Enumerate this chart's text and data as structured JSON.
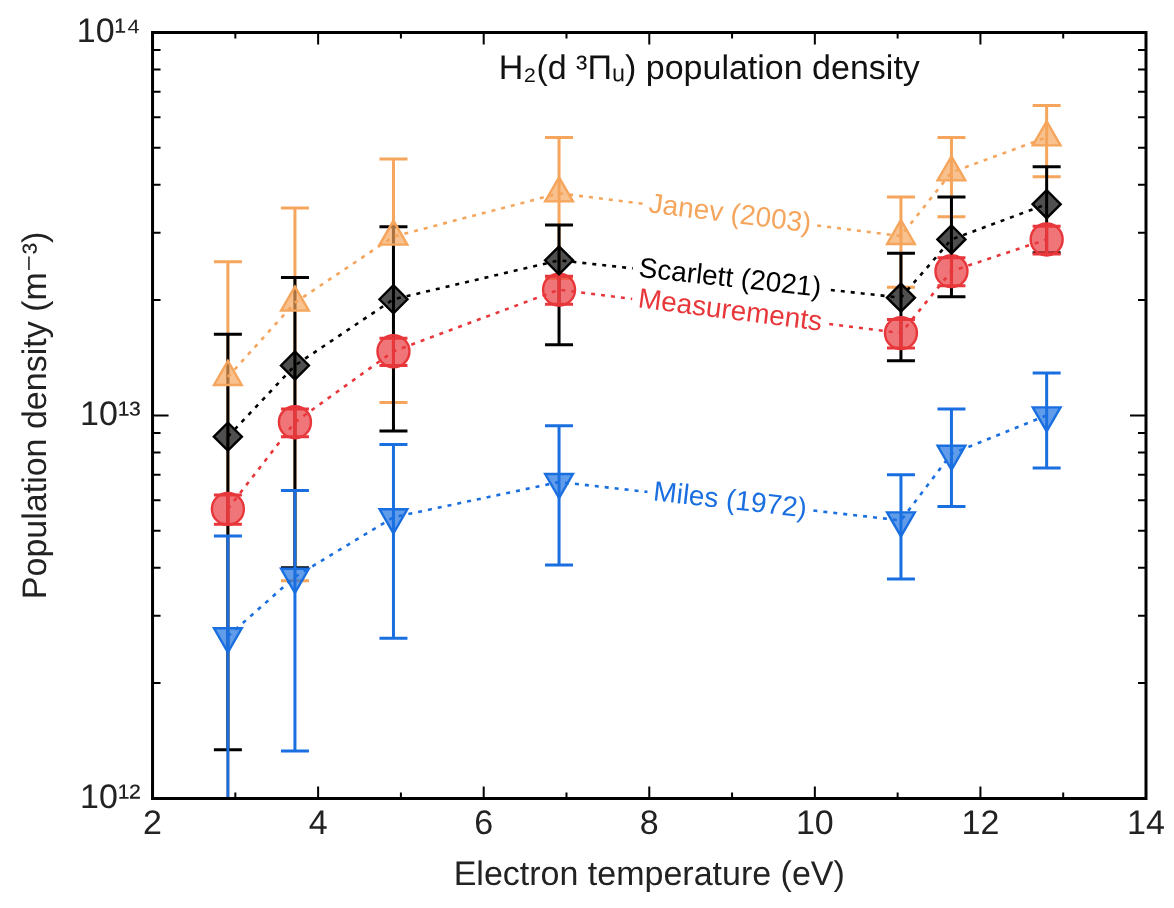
{
  "chart_data": {
    "type": "line",
    "title": "H₂(d ³Πᵤ) population density",
    "xlabel": "Electron temperature (eV)",
    "ylabel": "Population density (m⁻³)",
    "log": "y",
    "xlim": [
      2,
      14
    ],
    "ylim": [
      1000000000000.0,
      100000000000000.0
    ],
    "xticks": [
      2,
      {
        "value": 3,
        "label": null
      },
      4,
      {
        "value": 5,
        "label": null
      },
      6,
      {
        "value": 7,
        "label": null
      },
      8,
      {
        "value": 9,
        "label": null
      },
      10,
      {
        "value": 11,
        "label": null
      },
      12,
      {
        "value": 13,
        "label": null
      },
      14
    ],
    "yticks": [
      {
        "value": 1000000000000.0,
        "label": "10¹²"
      },
      {
        "value": 2000000000000.0,
        "label": null
      },
      {
        "value": 3000000000000.0,
        "label": null
      },
      {
        "value": 4000000000000.0,
        "label": null
      },
      {
        "value": 5000000000000.0,
        "label": null
      },
      {
        "value": 6000000000000.0,
        "label": null
      },
      {
        "value": 7000000000000.0,
        "label": null
      },
      {
        "value": 8000000000000.0,
        "label": null
      },
      {
        "value": 9000000000000.0,
        "label": null
      },
      {
        "value": 10000000000000.0,
        "label": "10¹³"
      },
      {
        "value": 20000000000000.0,
        "label": null
      },
      {
        "value": 30000000000000.0,
        "label": null
      },
      {
        "value": 40000000000000.0,
        "label": null
      },
      {
        "value": 50000000000000.0,
        "label": null
      },
      {
        "value": 60000000000000.0,
        "label": null
      },
      {
        "value": 70000000000000.0,
        "label": null
      },
      {
        "value": 80000000000000.0,
        "label": null
      },
      {
        "value": 90000000000000.0,
        "label": null
      },
      {
        "value": 100000000000000.0,
        "label": "10¹⁴"
      }
    ],
    "legend": false,
    "line_style": "dotted",
    "series": [
      {
        "name": "Janev (2003)",
        "color": "#f5a55c",
        "marker": "triangle",
        "x": [
          2.91,
          3.72,
          4.91,
          6.91,
          11.04,
          11.65,
          12.8
        ],
        "values": [
          12600000000000.0,
          19700000000000.0,
          29300000000000.0,
          38000000000000.0,
          29400000000000.0,
          43100000000000.0,
          53200000000000.0
        ],
        "errors": [
          [
            1000000000000.0,
            25200000000000.0
          ],
          [
            3700000000000.0,
            34800000000000.0
          ],
          [
            10800000000000.0,
            46700000000000.0
          ],
          [
            22800000000000.0,
            53200000000000.0
          ],
          [
            21600000000000.0,
            37200000000000.0
          ],
          [
            33000000000000.0,
            53200000000000.0
          ],
          [
            42000000000000.0,
            64400000000000.0
          ]
        ]
      },
      {
        "name": "Scarlett (2021)",
        "color": "#000000",
        "marker": "diamond",
        "x": [
          2.91,
          3.72,
          4.91,
          6.91,
          11.04,
          11.65,
          12.8
        ],
        "values": [
          8800000000000.0,
          13500000000000.0,
          20100000000000.0,
          25400000000000.0,
          20300000000000.0,
          28800000000000.0,
          35600000000000.0
        ],
        "errors": [
          [
            1340000000000.0,
            16300000000000.0
          ],
          [
            4000000000000.0,
            22900000000000.0
          ],
          [
            9100000000000.0,
            31100000000000.0
          ],
          [
            15300000000000.0,
            31400000000000.0
          ],
          [
            13900000000000.0,
            26500000000000.0
          ],
          [
            20400000000000.0,
            37200000000000.0
          ],
          [
            26600000000000.0,
            44600000000000.0
          ]
        ]
      },
      {
        "name": "Measurements",
        "color": "#e8373b",
        "marker": "circle",
        "x": [
          2.91,
          3.72,
          4.91,
          6.91,
          11.04,
          11.65,
          12.8
        ],
        "values": [
          5700000000000.0,
          9600000000000.0,
          14700000000000.0,
          21300000000000.0,
          16400000000000.0,
          23800000000000.0,
          28800000000000.0
        ],
        "errors": [
          [
            5200000000000.0,
            6200000000000.0
          ],
          [
            8800000000000.0,
            10400000000000.0
          ],
          [
            13500000000000.0,
            15900000000000.0
          ],
          [
            19500000000000.0,
            23100000000000.0
          ],
          [
            15000000000000.0,
            17800000000000.0
          ],
          [
            21800000000000.0,
            25800000000000.0
          ],
          [
            26400000000000.0,
            31200000000000.0
          ]
        ]
      },
      {
        "name": "Miles (1972)",
        "color": "#1a6fe0",
        "marker": "triangle_down",
        "x": [
          2.91,
          3.72,
          4.91,
          6.91,
          11.04,
          11.65,
          12.8
        ],
        "values": [
          2650000000000.0,
          3790000000000.0,
          5420000000000.0,
          6700000000000.0,
          5320000000000.0,
          7940000000000.0,
          10000000000000.0
        ],
        "errors": [
          [
            1000000000000.0,
            4840000000000.0
          ],
          [
            1330000000000.0,
            6370000000000.0
          ],
          [
            2620000000000.0,
            8400000000000.0
          ],
          [
            4070000000000.0,
            9400000000000.0
          ],
          [
            3740000000000.0,
            7000000000000.0
          ],
          [
            5780000000000.0,
            10400000000000.0
          ],
          [
            7290000000000.0,
            12900000000000.0
          ]
        ]
      }
    ]
  }
}
